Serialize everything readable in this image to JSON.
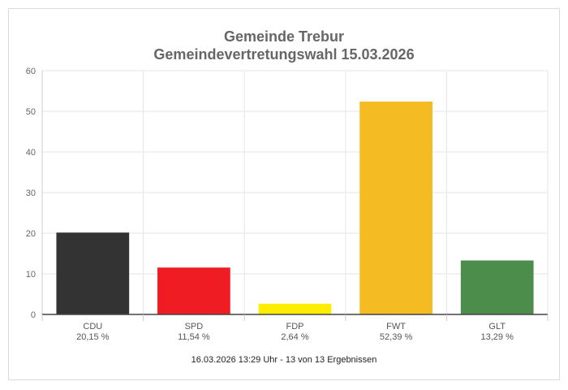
{
  "chart_data": {
    "type": "bar",
    "title_line1": "Gemeinde Trebur",
    "title_line2": "Gemeindevertretungswahl 15.03.2026",
    "categories": [
      "CDU",
      "SPD",
      "FDP",
      "FWT",
      "GLT"
    ],
    "values": [
      20.15,
      11.54,
      2.64,
      52.39,
      13.29
    ],
    "value_labels": [
      "20,15 %",
      "11,54 %",
      "2,64 %",
      "52,39 %",
      "13,29 %"
    ],
    "colors": [
      "#333333",
      "#ef1c24",
      "#ffed00",
      "#f4bb23",
      "#4c8d4b"
    ],
    "ylim": [
      0,
      60
    ],
    "yticks": [
      0,
      10,
      20,
      30,
      40,
      50,
      60
    ],
    "grid": true,
    "footnote": "16.03.2026 13:29 Uhr - 13 von 13 Ergebnissen"
  }
}
